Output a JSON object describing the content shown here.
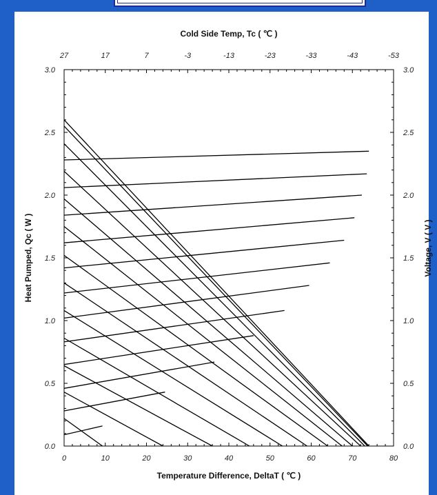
{
  "chart_data": {
    "type": "line",
    "title": "",
    "xlabel": "Temperature Difference, DeltaT ( ℃ )",
    "x2label": "Cold Side Temp, Tc ( ℃ )",
    "ylabel": "Heat Pumped, Qc  ( W )",
    "y2label": "Voltage, V ( V )",
    "xlim": [
      0,
      80
    ],
    "ylim": [
      0,
      3.0
    ],
    "y2lim": [
      0,
      3.0
    ],
    "x_ticks": [
      "0",
      "10",
      "20",
      "30",
      "40",
      "50",
      "60",
      "70",
      "80"
    ],
    "x2_ticks": [
      "27",
      "17",
      "7",
      "-3",
      "-13",
      "-23",
      "-33",
      "-43",
      "-53"
    ],
    "y_ticks": [
      "0.0",
      "0.5",
      "1.0",
      "1.5",
      "2.0",
      "2.5",
      "3.0"
    ],
    "y2_ticks": [
      "0.0",
      "0.5",
      "1.0",
      "1.5",
      "2.0",
      "2.5",
      "3.0"
    ],
    "grid": false,
    "legend": "none",
    "series": [
      {
        "kind": "Qc",
        "x": [
          0,
          9.3
        ],
        "y": [
          0.22,
          0
        ]
      },
      {
        "kind": "Qc",
        "x": [
          0,
          24
        ],
        "y": [
          0.43,
          0
        ]
      },
      {
        "kind": "Qc",
        "x": [
          0,
          36
        ],
        "y": [
          0.64,
          0
        ]
      },
      {
        "kind": "Qc",
        "x": [
          0,
          45
        ],
        "y": [
          0.86,
          0
        ]
      },
      {
        "kind": "Qc",
        "x": [
          0,
          53
        ],
        "y": [
          1.08,
          0
        ]
      },
      {
        "kind": "Qc",
        "x": [
          0,
          59
        ],
        "y": [
          1.3,
          0
        ]
      },
      {
        "kind": "Qc",
        "x": [
          0,
          64
        ],
        "y": [
          1.52,
          0
        ]
      },
      {
        "kind": "Qc",
        "x": [
          0,
          67.5
        ],
        "y": [
          1.75,
          0
        ]
      },
      {
        "kind": "Qc",
        "x": [
          0,
          70
        ],
        "y": [
          1.97,
          0
        ]
      },
      {
        "kind": "Qc",
        "x": [
          0,
          72
        ],
        "y": [
          2.19,
          0
        ]
      },
      {
        "kind": "Qc",
        "x": [
          0,
          73
        ],
        "y": [
          2.41,
          0
        ]
      },
      {
        "kind": "Qc",
        "x": [
          0,
          73.7
        ],
        "y": [
          2.55,
          0
        ]
      },
      {
        "kind": "Qc",
        "x": [
          0,
          74
        ],
        "y": [
          2.6,
          0
        ]
      },
      {
        "kind": "V",
        "x": [
          0,
          9.3
        ],
        "y": [
          0.09,
          0.16
        ]
      },
      {
        "kind": "V",
        "x": [
          0,
          24.5
        ],
        "y": [
          0.28,
          0.43
        ]
      },
      {
        "kind": "V",
        "x": [
          0,
          36.5
        ],
        "y": [
          0.46,
          0.67
        ]
      },
      {
        "kind": "V",
        "x": [
          0,
          46
        ],
        "y": [
          0.65,
          0.88
        ]
      },
      {
        "kind": "V",
        "x": [
          0,
          53.5
        ],
        "y": [
          0.83,
          1.08
        ]
      },
      {
        "kind": "V",
        "x": [
          0,
          59.5
        ],
        "y": [
          1.02,
          1.28
        ]
      },
      {
        "kind": "V",
        "x": [
          0,
          64.5
        ],
        "y": [
          1.22,
          1.46
        ]
      },
      {
        "kind": "V",
        "x": [
          0,
          68
        ],
        "y": [
          1.42,
          1.64
        ]
      },
      {
        "kind": "V",
        "x": [
          0,
          70.5
        ],
        "y": [
          1.62,
          1.82
        ]
      },
      {
        "kind": "V",
        "x": [
          0,
          72.3
        ],
        "y": [
          1.84,
          2.0
        ]
      },
      {
        "kind": "V",
        "x": [
          0,
          73.5
        ],
        "y": [
          2.06,
          2.17
        ]
      },
      {
        "kind": "V",
        "x": [
          0,
          74
        ],
        "y": [
          2.28,
          2.35
        ]
      }
    ],
    "colors": {
      "line": "#000000",
      "frame": "#1f5fc8",
      "panel": "#ffffff"
    }
  }
}
